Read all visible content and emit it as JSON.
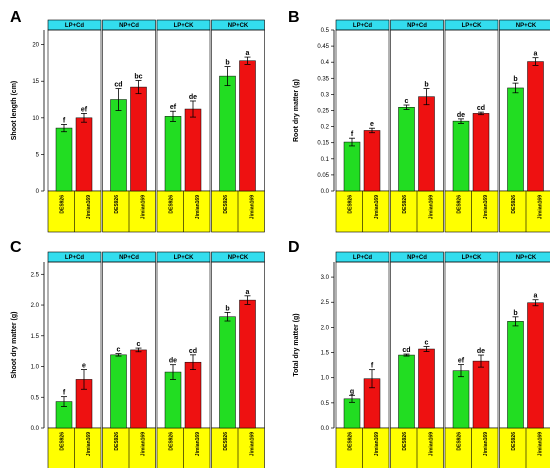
{
  "colors": {
    "green": "#22dd22",
    "red": "#ee1111",
    "facet_header": "#33ddee",
    "category_strip": "#ffff00"
  },
  "chart_data": [
    {
      "type": "bar",
      "panel_label": "A",
      "ylabel": "Shoot length (cm)",
      "ylim": [
        0,
        22
      ],
      "yticks": [
        0,
        5,
        10,
        15,
        20
      ],
      "facets": [
        {
          "name": "LP+Cd",
          "bars": [
            {
              "category": "DES926",
              "value": 8.6,
              "error": 0.5,
              "letter": "f"
            },
            {
              "category": "Jimian169",
              "value": 10.0,
              "error": 0.6,
              "letter": "ef"
            }
          ]
        },
        {
          "name": "NP+Cd",
          "bars": [
            {
              "category": "DES926",
              "value": 12.5,
              "error": 1.5,
              "letter": "cd"
            },
            {
              "category": "Jimian169",
              "value": 14.2,
              "error": 0.9,
              "letter": "bc"
            }
          ]
        },
        {
          "name": "LP+CK",
          "bars": [
            {
              "category": "DES926",
              "value": 10.2,
              "error": 0.7,
              "letter": "ef"
            },
            {
              "category": "Jimian169",
              "value": 11.2,
              "error": 1.1,
              "letter": "de"
            }
          ]
        },
        {
          "name": "NP+CK",
          "bars": [
            {
              "category": "DES926",
              "value": 15.7,
              "error": 1.3,
              "letter": "b"
            },
            {
              "category": "Jimian169",
              "value": 17.8,
              "error": 0.5,
              "letter": "a"
            }
          ]
        }
      ]
    },
    {
      "type": "bar",
      "panel_label": "B",
      "ylabel": "Root dry matter (g)",
      "ylim": [
        0,
        0.5
      ],
      "yticks": [
        0.0,
        0.05,
        0.1,
        0.15,
        0.2,
        0.25,
        0.3,
        0.35,
        0.4,
        0.45,
        0.5
      ],
      "ytick_labels": [
        "0.0",
        "0.05",
        "0.1",
        "0.15",
        "0.2",
        "0.25",
        "0.3",
        "0.35",
        "0.4",
        "0.45",
        "0.5"
      ],
      "facets": [
        {
          "name": "LP+Cd",
          "bars": [
            {
              "category": "DES926",
              "value": 0.152,
              "error": 0.012,
              "letter": "f"
            },
            {
              "category": "Jimian169",
              "value": 0.188,
              "error": 0.007,
              "letter": "e"
            }
          ]
        },
        {
          "name": "NP+Cd",
          "bars": [
            {
              "category": "DES926",
              "value": 0.26,
              "error": 0.007,
              "letter": "c"
            },
            {
              "category": "Jimian169",
              "value": 0.293,
              "error": 0.025,
              "letter": "b"
            }
          ]
        },
        {
          "name": "LP+CK",
          "bars": [
            {
              "category": "DES926",
              "value": 0.217,
              "error": 0.007,
              "letter": "de"
            },
            {
              "category": "Jimian169",
              "value": 0.241,
              "error": 0.004,
              "letter": "cd"
            }
          ]
        },
        {
          "name": "NP+CK",
          "bars": [
            {
              "category": "DES926",
              "value": 0.32,
              "error": 0.015,
              "letter": "b"
            },
            {
              "category": "Jimian169",
              "value": 0.402,
              "error": 0.012,
              "letter": "a"
            }
          ]
        }
      ]
    },
    {
      "type": "bar",
      "panel_label": "C",
      "ylabel": "Shoot dry matter (g)",
      "ylim": [
        0,
        2.7
      ],
      "yticks": [
        0.0,
        0.5,
        1.0,
        1.5,
        2.0,
        2.5
      ],
      "ytick_labels": [
        "0.0",
        "0.5",
        "1.0",
        "1.5",
        "2.0",
        "2.5"
      ],
      "facets": [
        {
          "name": "LP+Cd",
          "bars": [
            {
              "category": "DES926",
              "value": 0.43,
              "error": 0.08,
              "letter": "f"
            },
            {
              "category": "Jimian169",
              "value": 0.79,
              "error": 0.16,
              "letter": "e"
            }
          ]
        },
        {
          "name": "NP+Cd",
          "bars": [
            {
              "category": "DES926",
              "value": 1.19,
              "error": 0.02,
              "letter": "c"
            },
            {
              "category": "Jimian169",
              "value": 1.27,
              "error": 0.03,
              "letter": "c"
            }
          ]
        },
        {
          "name": "LP+CK",
          "bars": [
            {
              "category": "DES926",
              "value": 0.91,
              "error": 0.12,
              "letter": "de"
            },
            {
              "category": "Jimian169",
              "value": 1.07,
              "error": 0.12,
              "letter": "cd"
            }
          ]
        },
        {
          "name": "NP+CK",
          "bars": [
            {
              "category": "DES926",
              "value": 1.81,
              "error": 0.07,
              "letter": "b"
            },
            {
              "category": "Jimian169",
              "value": 2.08,
              "error": 0.07,
              "letter": "a"
            }
          ]
        }
      ]
    },
    {
      "type": "bar",
      "panel_label": "D",
      "ylabel": "Total dry matter (g)",
      "ylim": [
        0,
        3.3
      ],
      "yticks": [
        0.0,
        0.5,
        1.0,
        1.5,
        2.0,
        2.5,
        3.0
      ],
      "ytick_labels": [
        "0.0",
        "0.5",
        "1.0",
        "1.5",
        "2.0",
        "2.5",
        "3.0"
      ],
      "facets": [
        {
          "name": "LP+Cd",
          "bars": [
            {
              "category": "DES926",
              "value": 0.58,
              "error": 0.07,
              "letter": "g"
            },
            {
              "category": "Jimian169",
              "value": 0.98,
              "error": 0.18,
              "letter": "f"
            }
          ]
        },
        {
          "name": "NP+Cd",
          "bars": [
            {
              "category": "DES926",
              "value": 1.45,
              "error": 0.02,
              "letter": "cd"
            },
            {
              "category": "Jimian169",
              "value": 1.57,
              "error": 0.05,
              "letter": "c"
            }
          ]
        },
        {
          "name": "LP+CK",
          "bars": [
            {
              "category": "DES926",
              "value": 1.14,
              "error": 0.12,
              "letter": "ef"
            },
            {
              "category": "Jimian169",
              "value": 1.33,
              "error": 0.12,
              "letter": "de"
            }
          ]
        },
        {
          "name": "NP+CK",
          "bars": [
            {
              "category": "DES926",
              "value": 2.12,
              "error": 0.09,
              "letter": "b"
            },
            {
              "category": "Jimian169",
              "value": 2.49,
              "error": 0.06,
              "letter": "a"
            }
          ]
        }
      ]
    }
  ]
}
